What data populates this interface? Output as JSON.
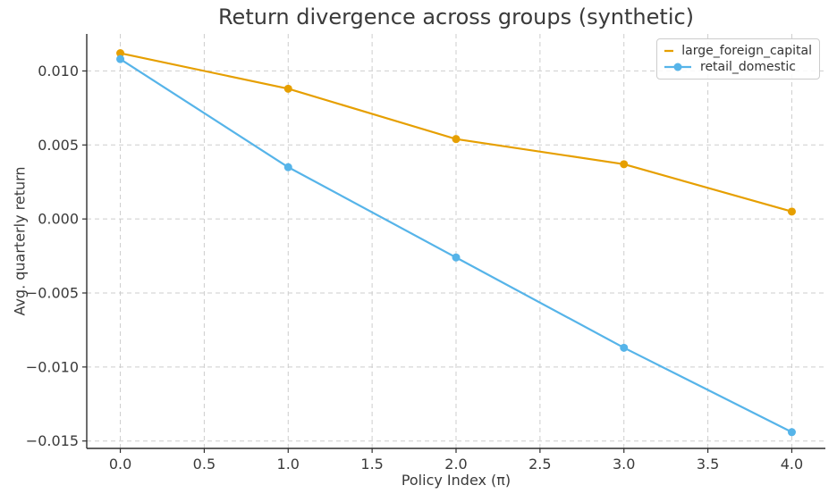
{
  "figure": {
    "background": "#ffffff"
  },
  "chart_data": {
    "type": "line",
    "title": "Return divergence across groups (synthetic)",
    "xlabel": "Policy Index (π)",
    "ylabel": "Avg. quarterly return",
    "x": [
      0,
      1,
      2,
      3,
      4
    ],
    "series": [
      {
        "name": "large_foreign_capital",
        "color": "#E69F00",
        "marker": "circle",
        "values": [
          0.0112,
          0.0088,
          0.0054,
          0.0037,
          0.0005
        ]
      },
      {
        "name": "retail_domestic",
        "color": "#56B4E9",
        "marker": "circle",
        "values": [
          0.0108,
          0.0035,
          -0.0026,
          -0.0087,
          -0.0144
        ]
      }
    ],
    "xlim": [
      -0.2,
      4.2
    ],
    "ylim": [
      -0.0155,
      0.0125
    ],
    "xticks": {
      "values": [
        0,
        0.5,
        1,
        1.5,
        2,
        2.5,
        3,
        3.5,
        4
      ],
      "labels": [
        "0.0",
        "0.5",
        "1.0",
        "1.5",
        "2.0",
        "2.5",
        "3.0",
        "3.5",
        "4.0"
      ]
    },
    "yticks": {
      "values": [
        -0.015,
        -0.01,
        -0.005,
        0,
        0.005,
        0.01
      ],
      "labels": [
        "−0.015",
        "−0.010",
        "−0.005",
        "0.000",
        "0.005",
        "0.010"
      ]
    },
    "grid": {
      "visible": true,
      "style": "dashed",
      "color": "#cdcdcd"
    },
    "legend": {
      "position": "upper right",
      "entries": [
        "large_foreign_capital",
        "retail_domestic"
      ]
    },
    "style": {
      "spine_color": "#2f2f2f",
      "text_color": "#3a3a3a",
      "line_width": 2.2,
      "marker_radius": 4.5
    }
  }
}
